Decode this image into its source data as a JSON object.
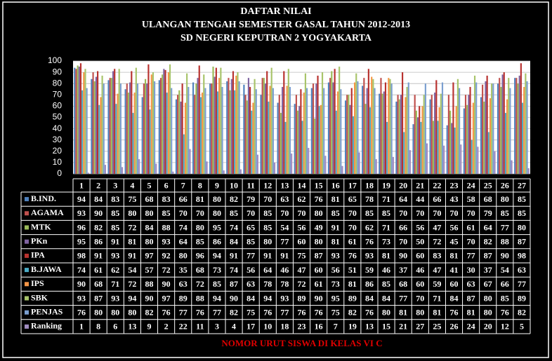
{
  "chart_data": {
    "type": "bar",
    "title": "DAFTAR NILAI",
    "subtitle": [
      "ULANGAN TENGAH SEMESTER GASAL TAHUN 2012-2013",
      "SD NEGERI KEPUTRAN 2 YOGYAKARTA"
    ],
    "x_label": "NOMOR URUT SISWA DI KELAS  VI C",
    "categories": [
      1,
      2,
      3,
      4,
      5,
      6,
      7,
      8,
      9,
      10,
      11,
      12,
      13,
      14,
      15,
      16,
      17,
      18,
      19,
      20,
      21,
      22,
      23,
      24,
      25,
      26,
      27
    ],
    "ylim": [
      0,
      100
    ],
    "yticks": [
      0,
      10,
      20,
      30,
      40,
      50,
      60,
      70,
      80,
      90,
      100
    ],
    "grid": true,
    "series": [
      {
        "name": "B.IND.",
        "color": "#4f81bd",
        "values": [
          94,
          84,
          83,
          75,
          68,
          83,
          66,
          81,
          80,
          82,
          79,
          70,
          63,
          62,
          76,
          81,
          65,
          78,
          71,
          64,
          44,
          66,
          43,
          58,
          68,
          80,
          85
        ]
      },
      {
        "name": "AGAMA",
        "color": "#c0504d",
        "values": [
          93,
          90,
          85,
          80,
          80,
          85,
          70,
          70,
          80,
          85,
          70,
          85,
          70,
          70,
          80,
          85,
          70,
          85,
          85,
          70,
          70,
          70,
          70,
          70,
          79,
          85,
          85
        ]
      },
      {
        "name": "MTK",
        "color": "#9bbb59",
        "values": [
          96,
          82,
          85,
          72,
          84,
          88,
          74,
          80,
          95,
          74,
          65,
          85,
          54,
          56,
          49,
          91,
          70,
          62,
          71,
          66,
          56,
          47,
          56,
          61,
          64,
          77,
          80
        ]
      },
      {
        "name": "PKn",
        "color": "#8064a2",
        "values": [
          95,
          86,
          91,
          81,
          80,
          93,
          64,
          85,
          86,
          84,
          85,
          80,
          77,
          60,
          80,
          81,
          61,
          76,
          73,
          70,
          50,
          72,
          45,
          70,
          82,
          88,
          87
        ]
      },
      {
        "name": "IPA",
        "color": "#b8322f",
        "values": [
          98,
          91,
          93,
          91,
          97,
          92,
          80,
          96,
          94,
          91,
          77,
          91,
          91,
          75,
          87,
          93,
          76,
          93,
          81,
          90,
          60,
          83,
          81,
          77,
          87,
          90,
          98
        ]
      },
      {
        "name": "B.JAWA",
        "color": "#4bacc6",
        "values": [
          74,
          61,
          62,
          54,
          57,
          72,
          35,
          68,
          73,
          74,
          56,
          64,
          46,
          47,
          60,
          56,
          51,
          59,
          46,
          37,
          46,
          47,
          41,
          30,
          37,
          54,
          63
        ]
      },
      {
        "name": "IPS",
        "color": "#f79646",
        "values": [
          90,
          68,
          71,
          72,
          88,
          90,
          63,
          72,
          85,
          87,
          63,
          78,
          78,
          72,
          61,
          73,
          81,
          86,
          85,
          68,
          60,
          59,
          60,
          63,
          67,
          66,
          77
        ]
      },
      {
        "name": "SBK",
        "color": "#a8c46a",
        "values": [
          93,
          87,
          93,
          94,
          90,
          97,
          89,
          88,
          94,
          90,
          84,
          94,
          93,
          89,
          90,
          95,
          89,
          84,
          84,
          77,
          70,
          71,
          84,
          87,
          80,
          85,
          89
        ]
      },
      {
        "name": "PENJAS",
        "color": "#7b9fd0",
        "values": [
          76,
          80,
          80,
          80,
          82,
          76,
          77,
          76,
          77,
          82,
          75,
          76,
          77,
          76,
          76,
          75,
          82,
          76,
          80,
          81,
          80,
          81,
          76,
          81,
          80,
          76,
          82
        ]
      },
      {
        "name": "Ranking",
        "color": "#a08cc0",
        "values": [
          1,
          8,
          6,
          13,
          9,
          2,
          22,
          11,
          3,
          4,
          17,
          10,
          18,
          23,
          16,
          7,
          19,
          13,
          15,
          21,
          27,
          25,
          26,
          24,
          20,
          12,
          5
        ]
      }
    ]
  }
}
